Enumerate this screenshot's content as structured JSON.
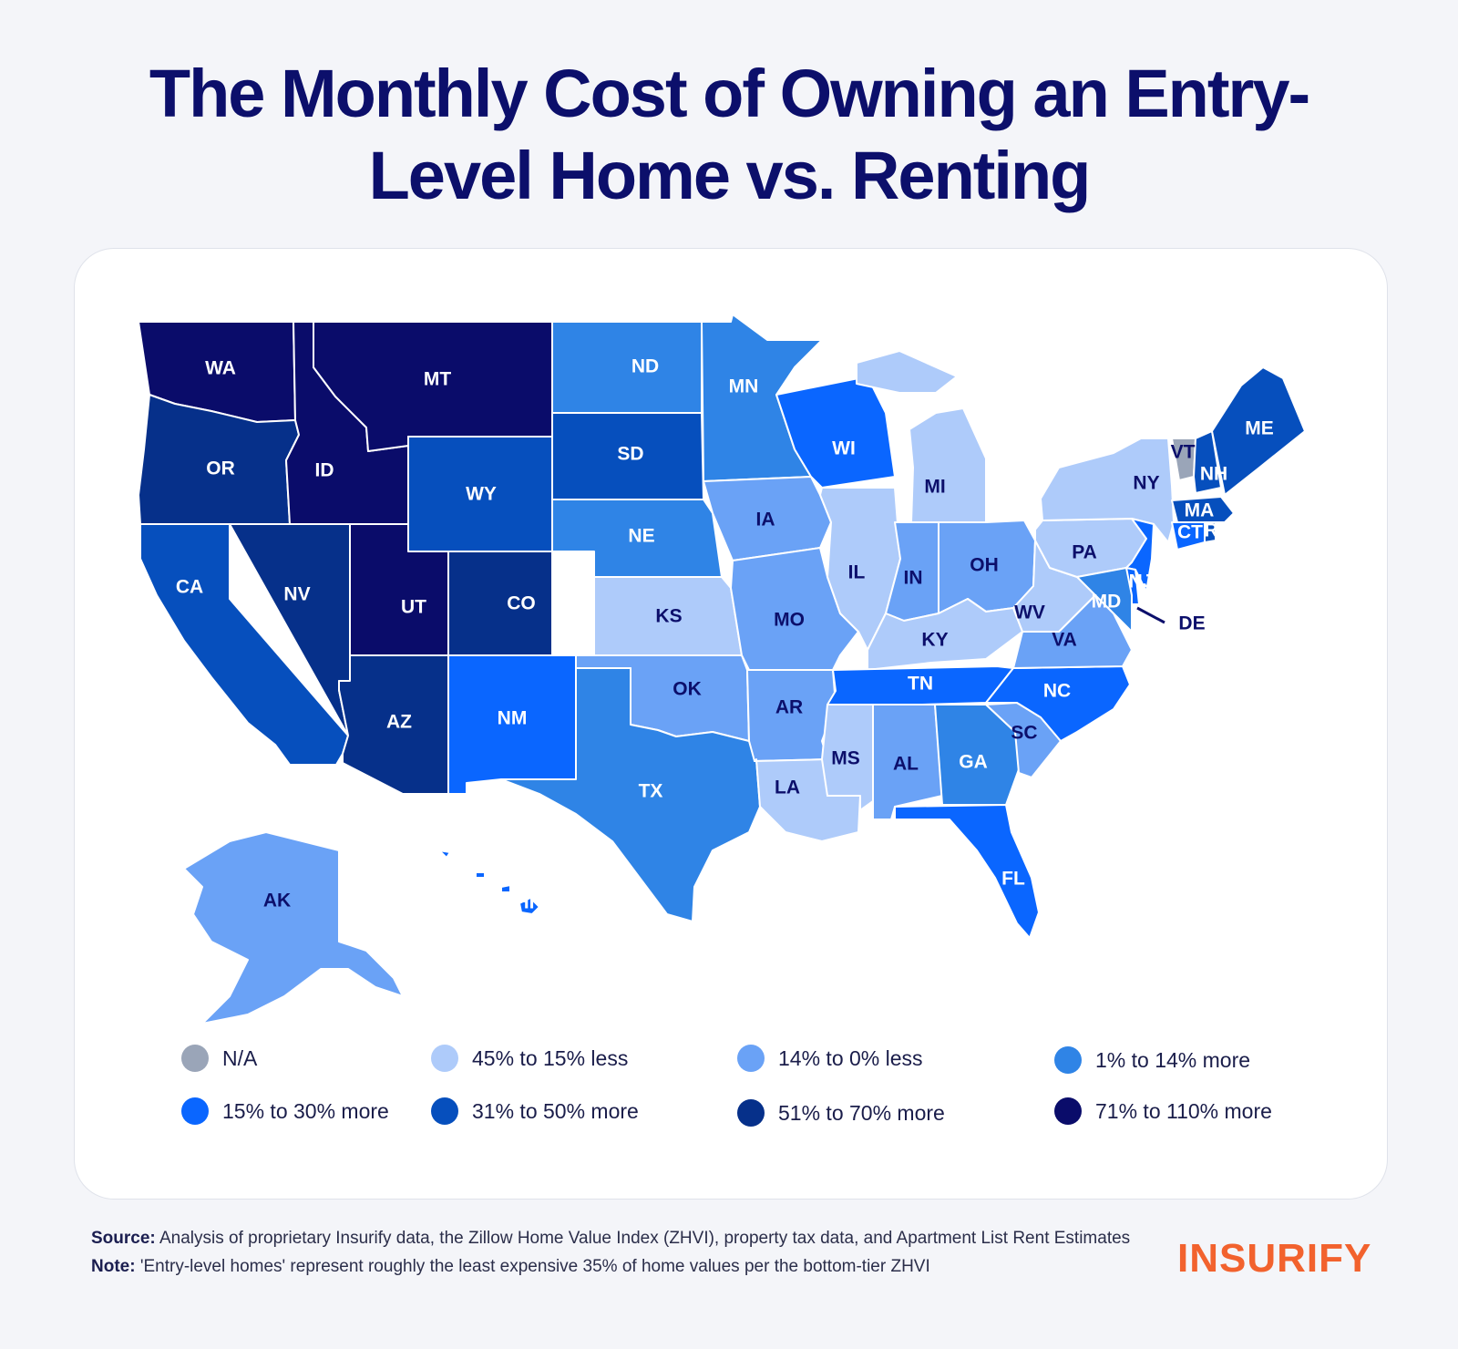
{
  "title": "The Monthly Cost of Owning an Entry-Level Home vs. Renting",
  "legend": [
    {
      "label": "N/A",
      "color": "#9aa5b8"
    },
    {
      "label": "45% to 15% less",
      "color": "#aecbfa"
    },
    {
      "label": "14% to 0% less",
      "color": "#6aa2f6"
    },
    {
      "label": "1% to 14% more",
      "color": "#2f84e6"
    },
    {
      "label": "15% to 30% more",
      "color": "#0a66ff"
    },
    {
      "label": "31% to 50% more",
      "color": "#064fbd"
    },
    {
      "label": "51% to 70% more",
      "color": "#06308a"
    },
    {
      "label": "71% to 110% more",
      "color": "#0a0c6a"
    }
  ],
  "states": {
    "WA": {
      "label": "WA",
      "category": 7
    },
    "OR": {
      "label": "OR",
      "category": 6
    },
    "CA": {
      "label": "CA",
      "category": 5
    },
    "ID": {
      "label": "ID",
      "category": 7
    },
    "NV": {
      "label": "NV",
      "category": 6
    },
    "MT": {
      "label": "MT",
      "category": 7
    },
    "WY": {
      "label": "WY",
      "category": 5
    },
    "UT": {
      "label": "UT",
      "category": 7
    },
    "AZ": {
      "label": "AZ",
      "category": 6
    },
    "CO": {
      "label": "CO",
      "category": 6
    },
    "NM": {
      "label": "NM",
      "category": 4
    },
    "ND": {
      "label": "ND",
      "category": 3
    },
    "SD": {
      "label": "SD",
      "category": 5
    },
    "NE": {
      "label": "NE",
      "category": 3
    },
    "KS": {
      "label": "KS",
      "category": 1
    },
    "OK": {
      "label": "OK",
      "category": 2
    },
    "TX": {
      "label": "TX",
      "category": 3
    },
    "MN": {
      "label": "MN",
      "category": 3
    },
    "IA": {
      "label": "IA",
      "category": 2
    },
    "MO": {
      "label": "MO",
      "category": 2
    },
    "AR": {
      "label": "AR",
      "category": 2
    },
    "LA": {
      "label": "LA",
      "category": 1
    },
    "WI": {
      "label": "WI",
      "category": 4
    },
    "IL": {
      "label": "IL",
      "category": 1
    },
    "MI": {
      "label": "MI",
      "category": 1
    },
    "IN": {
      "label": "IN",
      "category": 2
    },
    "OH": {
      "label": "OH",
      "category": 2
    },
    "KY": {
      "label": "KY",
      "category": 1
    },
    "TN": {
      "label": "TN",
      "category": 4
    },
    "MS": {
      "label": "MS",
      "category": 1
    },
    "AL": {
      "label": "AL",
      "category": 2
    },
    "GA": {
      "label": "GA",
      "category": 3
    },
    "FL": {
      "label": "FL",
      "category": 4
    },
    "SC": {
      "label": "SC",
      "category": 2
    },
    "NC": {
      "label": "NC",
      "category": 4
    },
    "VA": {
      "label": "VA",
      "category": 2
    },
    "WV": {
      "label": "WV",
      "category": 1
    },
    "PA": {
      "label": "PA",
      "category": 1
    },
    "NY": {
      "label": "NY",
      "category": 1
    },
    "VT": {
      "label": "VT",
      "category": 0
    },
    "NH": {
      "label": "NH",
      "category": 5
    },
    "ME": {
      "label": "ME",
      "category": 5
    },
    "MA": {
      "label": "MA",
      "category": 5
    },
    "RI": {
      "label": "RI",
      "category": 5
    },
    "CT": {
      "label": "CT",
      "category": 4
    },
    "NJ": {
      "label": "NJ",
      "category": 4
    },
    "DE": {
      "label": "DE",
      "category": 4
    },
    "MD": {
      "label": "MD",
      "category": 3
    },
    "AK": {
      "label": "AK",
      "category": 2
    },
    "HI": {
      "label": "HI",
      "category": 4
    }
  },
  "footer": {
    "source_label": "Source:",
    "source_text": "Analysis of proprietary Insurify data, the Zillow Home Value Index (ZHVI), property tax data, and Apartment List Rent Estimates",
    "note_label": "Note:",
    "note_text": "'Entry-level homes' represent roughly the least expensive 35% of home values per the bottom-tier ZHVI"
  },
  "logo": "INSURIFY"
}
